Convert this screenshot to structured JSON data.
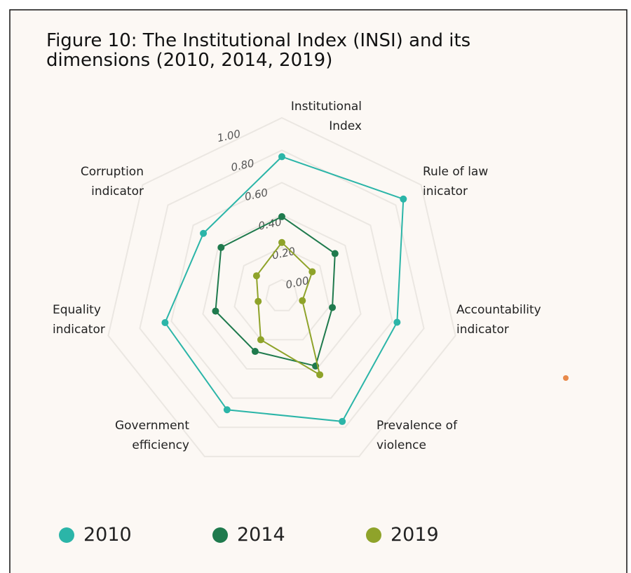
{
  "chart_data": {
    "type": "radar",
    "title": "Figure 10: The Institutional Index (INSI) and its\ndimensions (2010, 2014, 2019)",
    "categories": [
      "Institutional\nIndex",
      "Rule of law\ninicator",
      "Accountability\nindicator",
      "Prevalence of\nviolence",
      "Government\nefficiency",
      "Equality\nindicator",
      "Corruption\nindicator"
    ],
    "series": [
      {
        "name": "2010",
        "color": "#2bb5a8",
        "values": [
          0.76,
          0.86,
          0.63,
          0.76,
          0.68,
          0.64,
          0.52
        ]
      },
      {
        "name": "2014",
        "color": "#1f7a4d",
        "values": [
          0.39,
          0.32,
          0.22,
          0.38,
          0.28,
          0.32,
          0.38
        ]
      },
      {
        "name": "2019",
        "color": "#8fa32a",
        "values": [
          0.23,
          0.14,
          0.03,
          0.44,
          0.2,
          0.05,
          0.1
        ]
      }
    ],
    "ylim": [
      -0.1,
      1.0
    ],
    "yticks": [
      {
        "value": 0,
        "label": "0.00"
      },
      {
        "value": 0.2,
        "label": "0.20"
      },
      {
        "value": 0.4,
        "label": "0.40"
      },
      {
        "value": 0.6,
        "label": "0.60"
      },
      {
        "value": 0.8,
        "label": "0.80"
      },
      {
        "value": 1.0,
        "label": "1.00"
      }
    ],
    "grid": true
  }
}
